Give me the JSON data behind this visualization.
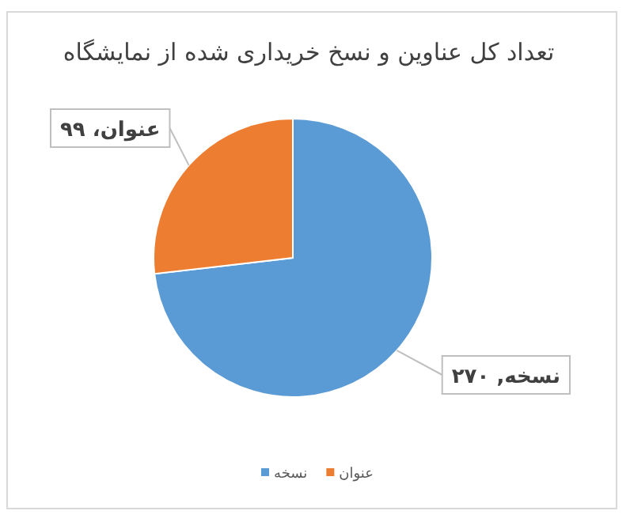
{
  "chart_data": {
    "type": "pie",
    "title": "تعداد کل عناوین و نسخ خریداری شده از نمایشگاه",
    "categories": [
      "نسخه",
      "عنوان"
    ],
    "values": [
      270,
      99
    ],
    "colors": [
      "#5b9bd5",
      "#ed7d31"
    ],
    "value_labels": [
      "نسخه, ۲۷۰",
      "عنوان، ۹۹"
    ],
    "legend": "bottom"
  }
}
